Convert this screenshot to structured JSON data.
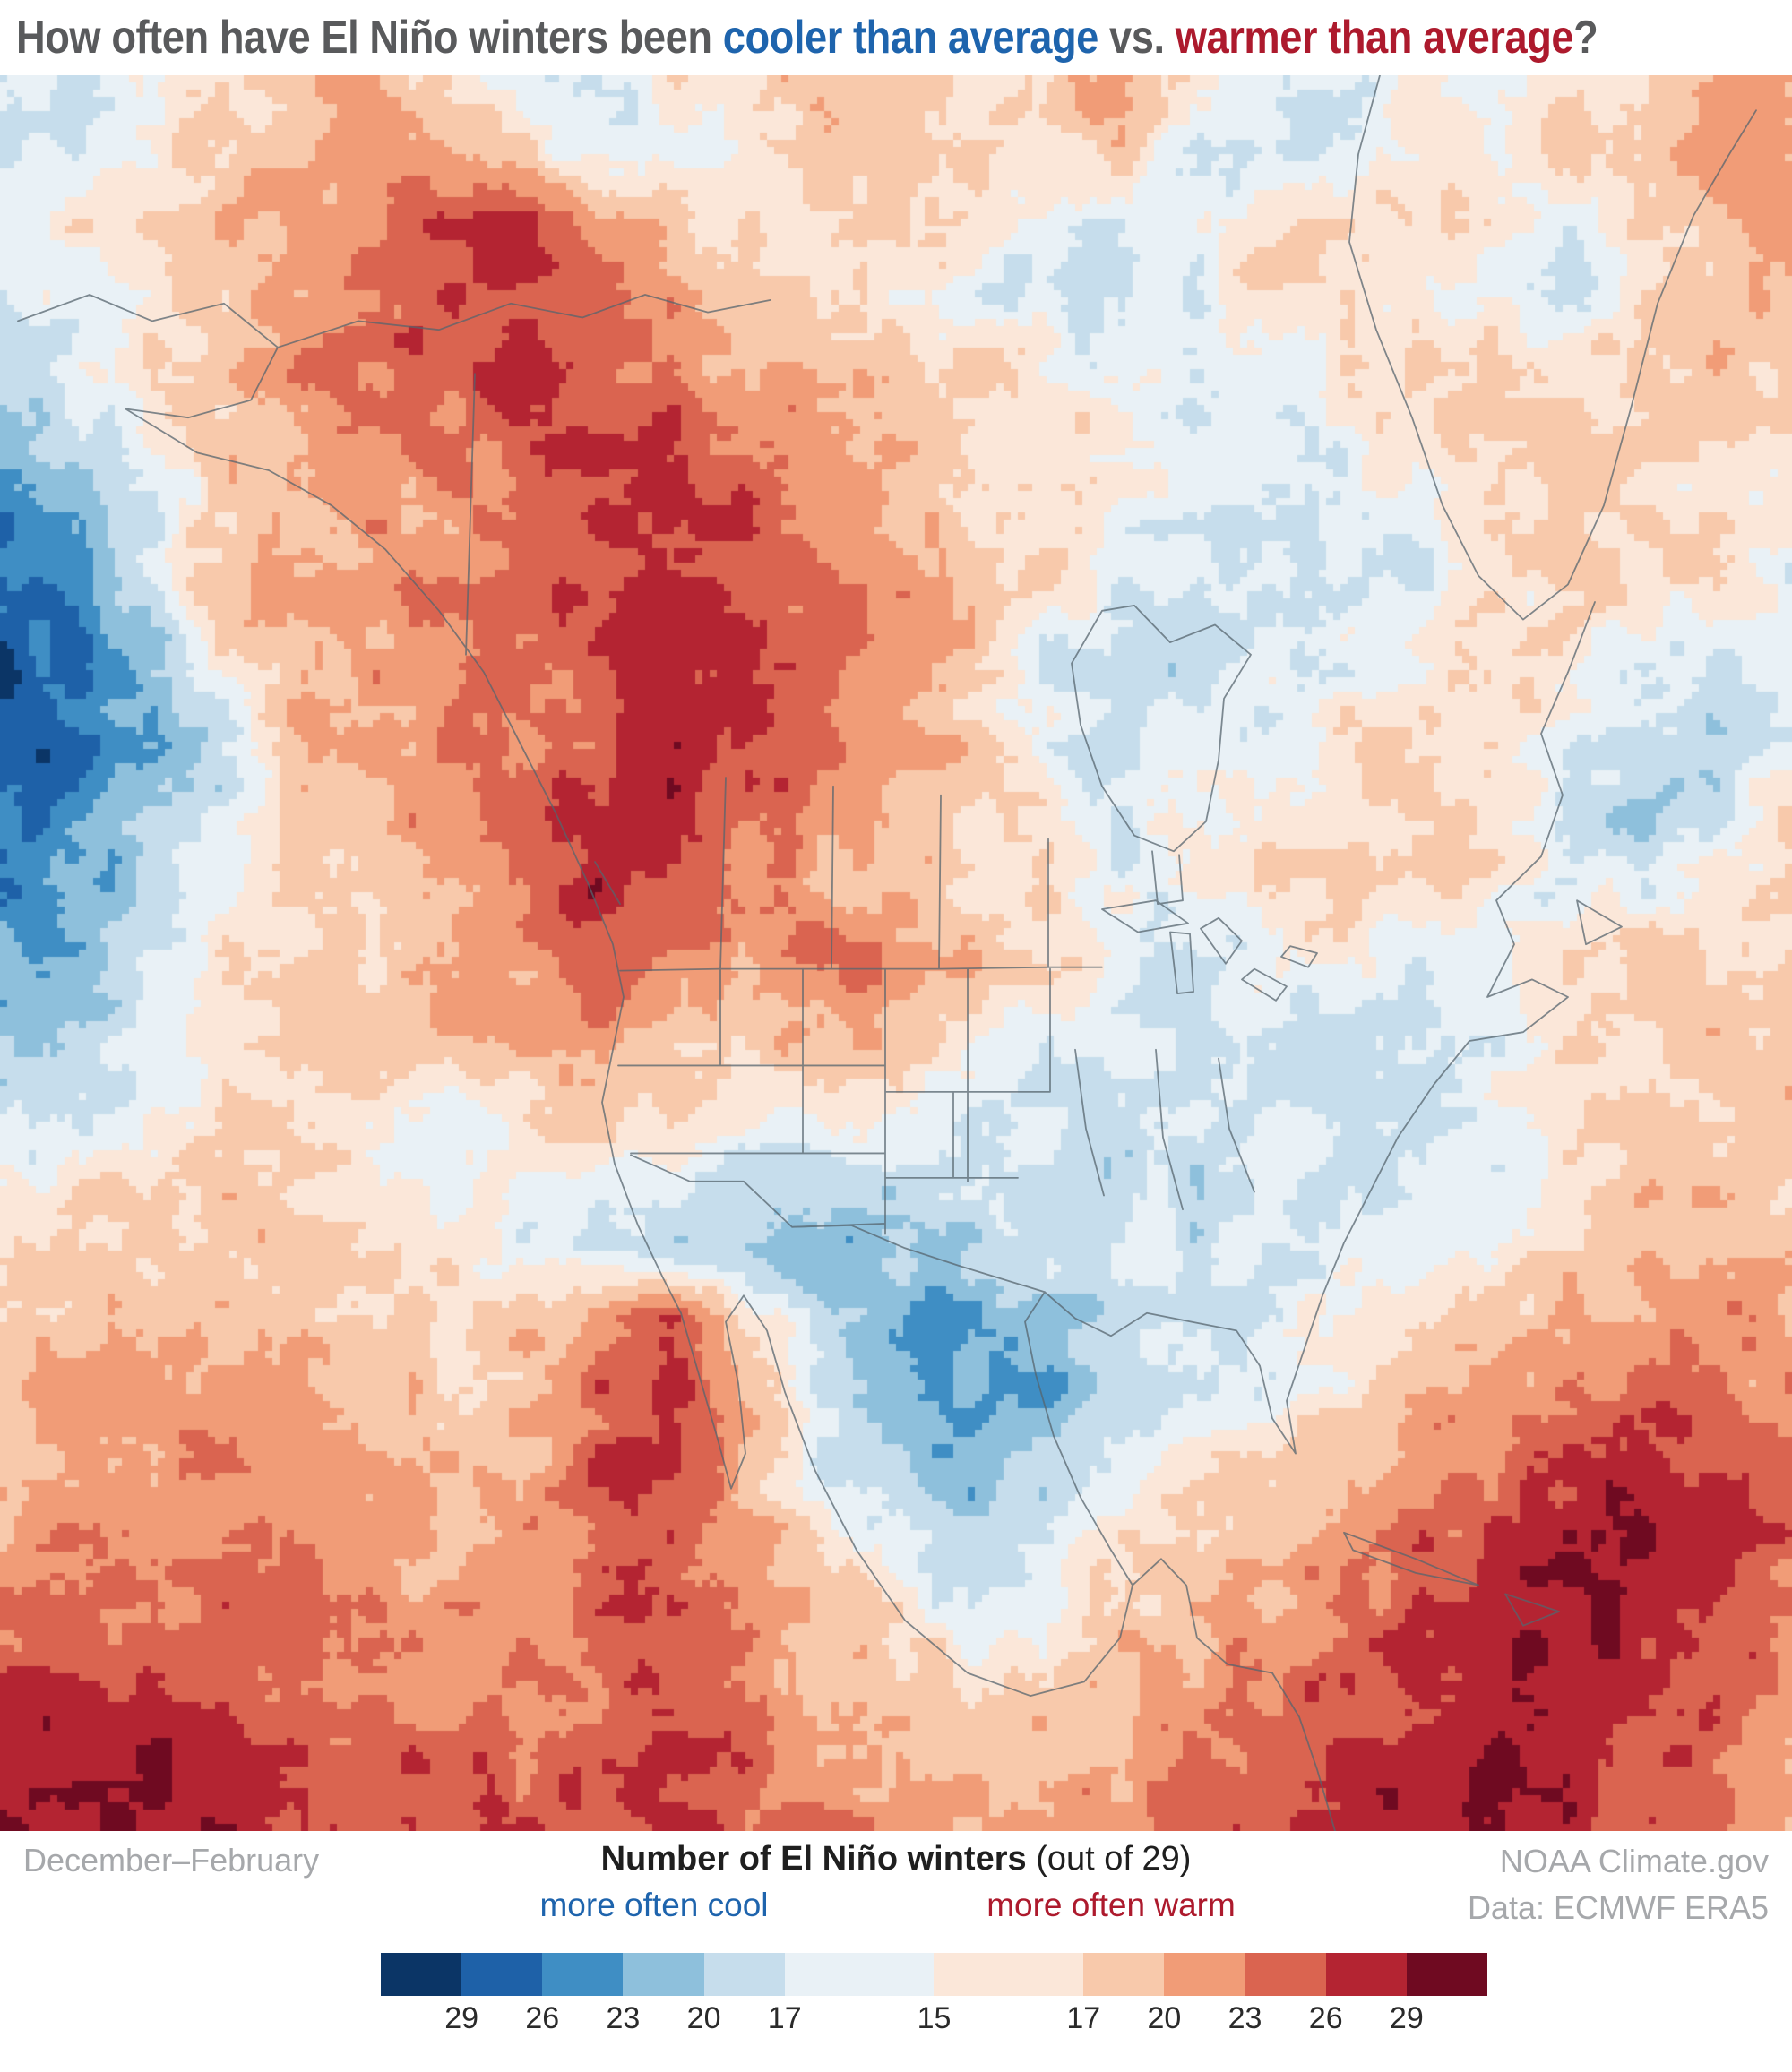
{
  "header": {
    "title_parts": [
      {
        "text": "How often have El Niño winters been ",
        "color": "gray"
      },
      {
        "text": "cooler than average",
        "color": "blue"
      },
      {
        "text": " vs. ",
        "color": "gray"
      },
      {
        "text": "warmer than average",
        "color": "red"
      },
      {
        "text": "?",
        "color": "gray"
      }
    ]
  },
  "footer": {
    "season_label": "December–February",
    "legend_title_bold": "Number of El Niño winters",
    "legend_title_note": " (out of 29)",
    "cool_label": "more often cool",
    "warm_label": "more often warm",
    "credit_line1": "NOAA Climate.gov",
    "credit_line2": "Data: ECMWF ERA5"
  },
  "colors": {
    "title_gray": "#595a5c",
    "cool_blue": "#1e64ad",
    "warm_red": "#ad1a2d",
    "muted_gray": "#a6a8ab",
    "text_dark": "#1f1f1f",
    "border_line": "#56646e"
  },
  "chart_data": {
    "type": "heatmap",
    "title": "How often have El Niño winters been cooler than average vs. warmer than average?",
    "season": "December–February",
    "units": "Number of El Niño winters (out of 29)",
    "source": "NOAA Climate.gov, Data: ECMWF ERA5",
    "legend": {
      "cool_label": "more often cool",
      "warm_label": "more often warm",
      "tick_values": [
        29,
        26,
        23,
        20,
        17,
        15,
        17,
        20,
        23,
        26,
        29
      ],
      "segment_weights": [
        1,
        1,
        1,
        1,
        1,
        1.85,
        1.85,
        1,
        1,
        1,
        1,
        1
      ],
      "palette": [
        "#0b3566",
        "#1e61a8",
        "#3f8ec4",
        "#8ec0dc",
        "#c6ddec",
        "#e9f1f6",
        "#fbe7d9",
        "#f8c9ab",
        "#f19c77",
        "#da6450",
        "#b42432",
        "#6f0a21"
      ]
    },
    "map_grid": {
      "cols": 25,
      "rows": 25,
      "value_meaning": "approximate count of El Niño winters out of 29; positive = warmer than average, negative = cooler than average; grid spans the map area left-to-right, top-to-bottom",
      "values": [
        [
          -16,
          -17,
          -16,
          16,
          18,
          20,
          18,
          -16,
          -17,
          16,
          17,
          20,
          18,
          16,
          19,
          21,
          17,
          -16,
          -17,
          16,
          -17,
          16,
          17,
          20,
          22
        ],
        [
          -17,
          -16,
          16,
          18,
          20,
          22,
          20,
          17,
          -16,
          -16,
          16,
          18,
          21,
          17,
          16,
          18,
          -16,
          -17,
          -18,
          -16,
          16,
          17,
          18,
          21,
          20
        ],
        [
          -16,
          16,
          17,
          19,
          21,
          23,
          25,
          26,
          22,
          18,
          16,
          17,
          18,
          16,
          -16,
          -17,
          -16,
          16,
          17,
          18,
          16,
          -16,
          16,
          19,
          21
        ],
        [
          -17,
          -16,
          16,
          18,
          21,
          24,
          26,
          27,
          24,
          21,
          19,
          17,
          16,
          -16,
          -17,
          -18,
          -16,
          16,
          17,
          16,
          -16,
          -17,
          16,
          18,
          20
        ],
        [
          -18,
          -17,
          17,
          19,
          22,
          23,
          25,
          26,
          24,
          22,
          20,
          19,
          18,
          17,
          16,
          -16,
          -17,
          -16,
          16,
          17,
          18,
          16,
          17,
          19,
          18
        ],
        [
          -21,
          -19,
          16,
          18,
          21,
          22,
          23,
          24,
          26,
          27,
          24,
          21,
          19,
          18,
          17,
          16,
          -16,
          -17,
          -16,
          16,
          17,
          18,
          17,
          18,
          17
        ],
        [
          -25,
          -22,
          -17,
          18,
          20,
          21,
          22,
          24,
          26,
          28,
          25,
          22,
          20,
          18,
          17,
          -16,
          -17,
          -17,
          -17,
          -16,
          16,
          17,
          17,
          16,
          16
        ],
        [
          -27,
          -24,
          -19,
          19,
          21,
          22,
          23,
          24,
          26,
          27,
          26,
          24,
          21,
          19,
          17,
          -17,
          -18,
          -17,
          -16,
          -17,
          16,
          17,
          16,
          17,
          -16
        ],
        [
          -29,
          -26,
          -21,
          17,
          20,
          21,
          22,
          24,
          25,
          28,
          26,
          23,
          20,
          18,
          -17,
          -18,
          -18,
          -17,
          -16,
          16,
          17,
          16,
          -17,
          -17,
          -16
        ],
        [
          -29,
          -27,
          -22,
          -18,
          19,
          21,
          23,
          24,
          25,
          28,
          27,
          24,
          21,
          19,
          -16,
          -18,
          -17,
          -16,
          16,
          17,
          18,
          -16,
          -18,
          -20,
          -17
        ],
        [
          -27,
          -25,
          -20,
          -17,
          18,
          20,
          22,
          24,
          27,
          28,
          25,
          22,
          20,
          17,
          16,
          -17,
          -16,
          16,
          17,
          18,
          17,
          -17,
          -21,
          -18,
          16
        ],
        [
          -25,
          -23,
          -19,
          -16,
          17,
          19,
          21,
          24,
          27,
          26,
          23,
          20,
          18,
          17,
          16,
          -16,
          16,
          17,
          18,
          17,
          16,
          -16,
          -17,
          16,
          17
        ],
        [
          -23,
          -21,
          -18,
          16,
          17,
          18,
          20,
          22,
          26,
          23,
          21,
          25,
          22,
          19,
          17,
          -16,
          -17,
          -16,
          16,
          -16,
          -17,
          16,
          17,
          18,
          17
        ],
        [
          -20,
          -19,
          -17,
          16,
          17,
          18,
          19,
          20,
          24,
          19,
          18,
          21,
          19,
          17,
          -16,
          -17,
          -17,
          -16,
          -17,
          -18,
          -16,
          16,
          17,
          19,
          18
        ],
        [
          -18,
          -17,
          -16,
          17,
          18,
          17,
          -16,
          16,
          18,
          17,
          16,
          17,
          16,
          -16,
          -17,
          -18,
          -17,
          -17,
          -18,
          -17,
          -16,
          17,
          18,
          18,
          19
        ],
        [
          -16,
          16,
          17,
          18,
          17,
          16,
          -16,
          -16,
          16,
          -16,
          -17,
          -18,
          -18,
          -17,
          -18,
          -19,
          -18,
          -17,
          -17,
          -16,
          -16,
          16,
          18,
          19,
          18
        ],
        [
          17,
          18,
          18,
          19,
          18,
          17,
          16,
          -16,
          -17,
          -19,
          -21,
          -22,
          -21,
          -19,
          -18,
          -17,
          -18,
          -17,
          -16,
          -17,
          16,
          17,
          19,
          20,
          19
        ],
        [
          18,
          19,
          20,
          20,
          19,
          18,
          17,
          18,
          20,
          26,
          17,
          -19,
          -22,
          -23,
          -21,
          -18,
          -17,
          -16,
          -16,
          16,
          18,
          20,
          21,
          22,
          21
        ],
        [
          19,
          20,
          21,
          21,
          20,
          19,
          18,
          19,
          24,
          27,
          19,
          -18,
          -22,
          -24,
          -22,
          -19,
          -17,
          -16,
          16,
          19,
          21,
          23,
          24,
          23,
          22
        ],
        [
          20,
          21,
          22,
          22,
          21,
          20,
          19,
          20,
          25,
          27,
          20,
          -17,
          -20,
          -22,
          -20,
          -17,
          16,
          17,
          18,
          22,
          24,
          26,
          27,
          26,
          24
        ],
        [
          21,
          22,
          23,
          23,
          22,
          21,
          20,
          21,
          24,
          26,
          21,
          17,
          -17,
          -19,
          -17,
          16,
          17,
          18,
          21,
          24,
          26,
          28,
          29,
          27,
          25
        ],
        [
          23,
          24,
          24,
          24,
          23,
          22,
          21,
          22,
          24,
          25,
          22,
          19,
          17,
          -17,
          -16,
          17,
          19,
          21,
          23,
          26,
          28,
          29,
          28,
          26,
          23
        ],
        [
          26,
          27,
          26,
          25,
          24,
          23,
          22,
          23,
          24,
          25,
          23,
          21,
          19,
          17,
          17,
          19,
          21,
          23,
          25,
          27,
          28,
          28,
          27,
          25,
          22
        ],
        [
          28,
          29,
          28,
          27,
          26,
          25,
          24,
          24,
          25,
          26,
          24,
          22,
          21,
          19,
          19,
          21,
          23,
          24,
          26,
          27,
          28,
          27,
          26,
          24,
          21
        ],
        [
          29,
          29,
          29,
          28,
          27,
          26,
          25,
          26,
          26,
          27,
          25,
          23,
          22,
          21,
          21,
          22,
          24,
          25,
          27,
          28,
          28,
          27,
          25,
          23,
          20
        ]
      ]
    }
  }
}
